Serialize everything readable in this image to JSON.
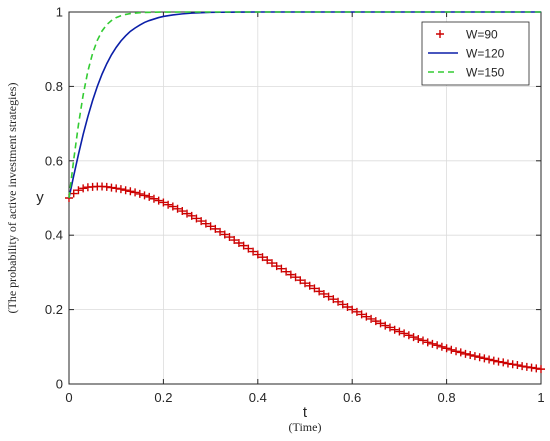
{
  "chart_data": {
    "type": "line",
    "xlabel": "t",
    "xlabel_sub": "(Time)",
    "ylabel": "y",
    "ylabel_sub": "(The probability of active investment strategies)",
    "xlim": [
      0,
      1
    ],
    "ylim": [
      0,
      1
    ],
    "xticks": [
      "0",
      "0.2",
      "0.4",
      "0.6",
      "0.8",
      "1"
    ],
    "yticks": [
      "0",
      "0.2",
      "0.4",
      "0.6",
      "0.8",
      "1"
    ],
    "grid": true,
    "legend_position": "top-right",
    "series": [
      {
        "name": "W=90",
        "style": "plus-markers",
        "color": "#cc0000",
        "x": [
          0,
          0.01,
          0.02,
          0.03,
          0.04,
          0.05,
          0.06,
          0.07,
          0.08,
          0.09,
          0.1,
          0.11,
          0.12,
          0.13,
          0.14,
          0.15,
          0.16,
          0.17,
          0.18,
          0.19,
          0.2,
          0.21,
          0.22,
          0.23,
          0.24,
          0.25,
          0.26,
          0.27,
          0.28,
          0.29,
          0.3,
          0.31,
          0.32,
          0.33,
          0.34,
          0.35,
          0.36,
          0.37,
          0.38,
          0.39,
          0.4,
          0.41,
          0.42,
          0.43,
          0.44,
          0.45,
          0.46,
          0.47,
          0.48,
          0.49,
          0.5,
          0.51,
          0.52,
          0.53,
          0.54,
          0.55,
          0.56,
          0.57,
          0.58,
          0.59,
          0.6,
          0.61,
          0.62,
          0.63,
          0.64,
          0.65,
          0.66,
          0.67,
          0.68,
          0.69,
          0.7,
          0.71,
          0.72,
          0.73,
          0.74,
          0.75,
          0.76,
          0.77,
          0.78,
          0.79,
          0.8,
          0.81,
          0.82,
          0.83,
          0.84,
          0.85,
          0.86,
          0.87,
          0.88,
          0.89,
          0.9,
          0.91,
          0.92,
          0.93,
          0.94,
          0.95,
          0.96,
          0.97,
          0.98,
          0.99,
          1.0
        ],
        "values": [
          0.5,
          0.512,
          0.521,
          0.526,
          0.529,
          0.53,
          0.531,
          0.531,
          0.53,
          0.528,
          0.526,
          0.524,
          0.521,
          0.518,
          0.515,
          0.511,
          0.507,
          0.503,
          0.498,
          0.493,
          0.488,
          0.482,
          0.477,
          0.471,
          0.465,
          0.458,
          0.452,
          0.445,
          0.438,
          0.431,
          0.424,
          0.417,
          0.409,
          0.402,
          0.395,
          0.387,
          0.379,
          0.372,
          0.364,
          0.356,
          0.348,
          0.341,
          0.333,
          0.325,
          0.317,
          0.31,
          0.302,
          0.294,
          0.287,
          0.279,
          0.271,
          0.264,
          0.257,
          0.249,
          0.242,
          0.235,
          0.228,
          0.221,
          0.214,
          0.207,
          0.2,
          0.194,
          0.187,
          0.181,
          0.175,
          0.169,
          0.163,
          0.157,
          0.152,
          0.146,
          0.141,
          0.136,
          0.131,
          0.126,
          0.121,
          0.117,
          0.112,
          0.108,
          0.104,
          0.1,
          0.096,
          0.092,
          0.088,
          0.085,
          0.081,
          0.078,
          0.075,
          0.072,
          0.069,
          0.066,
          0.063,
          0.06,
          0.058,
          0.055,
          0.053,
          0.051,
          0.048,
          0.046,
          0.044,
          0.042,
          0.04
        ]
      },
      {
        "name": "W=120",
        "style": "solid",
        "color": "#0b1fa8",
        "x": [
          0,
          0.01,
          0.02,
          0.03,
          0.04,
          0.05,
          0.06,
          0.07,
          0.08,
          0.09,
          0.1,
          0.11,
          0.12,
          0.13,
          0.14,
          0.15,
          0.16,
          0.17,
          0.18,
          0.19,
          0.2,
          0.22,
          0.24,
          0.26,
          0.28,
          0.3,
          0.32,
          0.34,
          0.36,
          0.38,
          0.4,
          0.5,
          0.6,
          0.7,
          0.8,
          0.9,
          1.0
        ],
        "values": [
          0.5,
          0.56,
          0.617,
          0.671,
          0.719,
          0.762,
          0.8,
          0.833,
          0.861,
          0.885,
          0.905,
          0.922,
          0.936,
          0.948,
          0.957,
          0.965,
          0.972,
          0.977,
          0.981,
          0.985,
          0.988,
          0.992,
          0.995,
          0.997,
          0.998,
          0.999,
          0.9993,
          0.9996,
          0.9998,
          0.9999,
          1.0,
          1.0,
          1.0,
          1.0,
          1.0,
          1.0,
          1.0
        ]
      },
      {
        "name": "W=150",
        "style": "dashed",
        "color": "#33cc33",
        "x": [
          0,
          0.01,
          0.02,
          0.03,
          0.04,
          0.05,
          0.06,
          0.07,
          0.08,
          0.09,
          0.1,
          0.11,
          0.12,
          0.13,
          0.14,
          0.15,
          0.16,
          0.18,
          0.2,
          0.22,
          0.24,
          0.26,
          0.28,
          0.3,
          0.4,
          0.5,
          0.6,
          0.7,
          0.8,
          0.9,
          1.0
        ],
        "values": [
          0.5,
          0.603,
          0.697,
          0.777,
          0.841,
          0.889,
          0.924,
          0.949,
          0.966,
          0.977,
          0.985,
          0.99,
          0.9935,
          0.9957,
          0.9972,
          0.9981,
          0.9988,
          0.9995,
          0.9998,
          0.9999,
          1.0,
          1.0,
          1.0,
          1.0,
          1.0,
          1.0,
          1.0,
          1.0,
          1.0,
          1.0,
          1.0
        ]
      }
    ]
  }
}
